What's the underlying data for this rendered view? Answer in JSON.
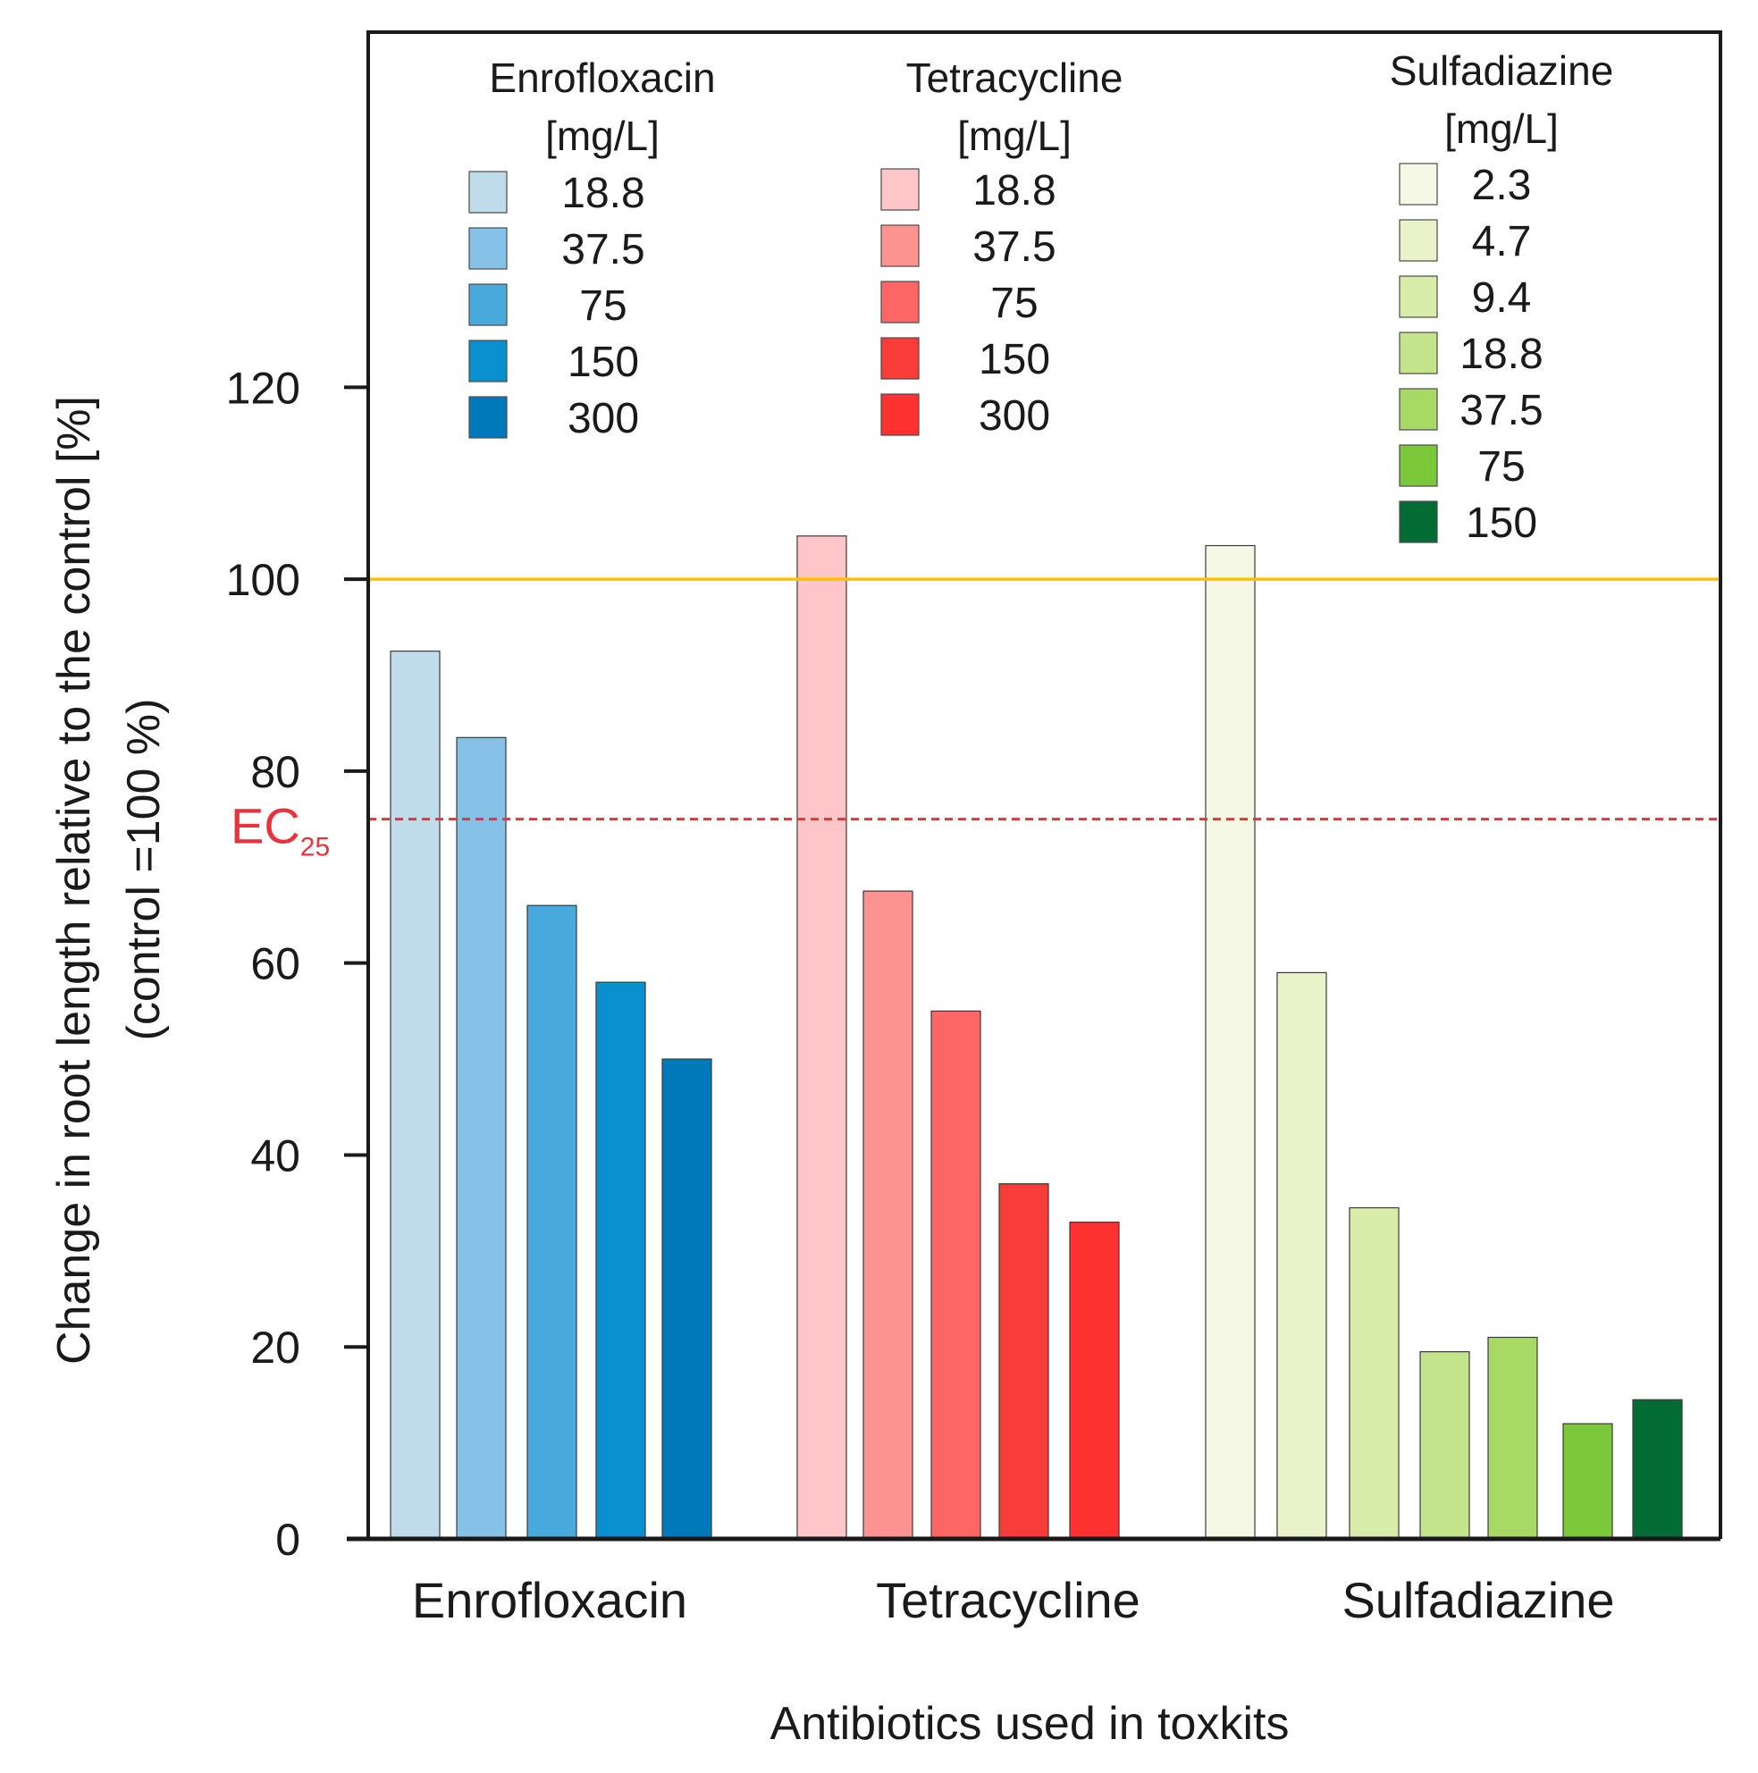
{
  "chart_data": {
    "type": "bar",
    "title": "",
    "xlabel": "Antibiotics used in toxkits",
    "ylabel_line1": "Change in root length relative to the control [%]",
    "ylabel_line2": "(control =100 %)",
    "ylim": [
      0,
      157
    ],
    "yticks": [
      0,
      20,
      40,
      60,
      80,
      100,
      120
    ],
    "grid": false,
    "reference_lines": [
      {
        "name": "control",
        "value": 100,
        "color": "#ffc000",
        "style": "solid"
      },
      {
        "name": "EC25",
        "value": 75,
        "color": "#e8323c",
        "style": "dashed",
        "label_main": "EC",
        "label_sub": "25"
      }
    ],
    "groups": [
      {
        "name": "Enrofloxacin",
        "legend_title": "Enrofloxacin",
        "legend_unit": "[mg/L]",
        "bars": [
          {
            "concentration": "18.8",
            "value": 92.5,
            "color": "#c0dcea"
          },
          {
            "concentration": "37.5",
            "value": 83.5,
            "color": "#86c2e8"
          },
          {
            "concentration": "75",
            "value": 66,
            "color": "#48a9dc"
          },
          {
            "concentration": "150",
            "value": 58,
            "color": "#0a8fcf"
          },
          {
            "concentration": "300",
            "value": 50,
            "color": "#0079ba"
          }
        ]
      },
      {
        "name": "Tetracycline",
        "legend_title": "Tetracycline",
        "legend_unit": "[mg/L]",
        "bars": [
          {
            "concentration": "18.8",
            "value": 104.5,
            "color": "#fec6c8"
          },
          {
            "concentration": "37.5",
            "value": 67.5,
            "color": "#fd9391"
          },
          {
            "concentration": "75",
            "value": 55,
            "color": "#fd6664"
          },
          {
            "concentration": "150",
            "value": 37,
            "color": "#f73c3a"
          },
          {
            "concentration": "300",
            "value": 33,
            "color": "#fe3131"
          }
        ]
      },
      {
        "name": "Sulfadiazine",
        "legend_title": "Sulfadiazine",
        "legend_unit": "[mg/L]",
        "bars": [
          {
            "concentration": "2.3",
            "value": 103.5,
            "color": "#f4f8e4"
          },
          {
            "concentration": "4.7",
            "value": 59,
            "color": "#e9f2c9"
          },
          {
            "concentration": "9.4",
            "value": 34.5,
            "color": "#d9edaa"
          },
          {
            "concentration": "18.8",
            "value": 19.5,
            "color": "#c4e48b"
          },
          {
            "concentration": "37.5",
            "value": 21,
            "color": "#a8d965"
          },
          {
            "concentration": "75",
            "value": 12,
            "color": "#7cc83b"
          },
          {
            "concentration": "150",
            "value": 14.5,
            "color": "#036b34"
          }
        ]
      }
    ]
  }
}
